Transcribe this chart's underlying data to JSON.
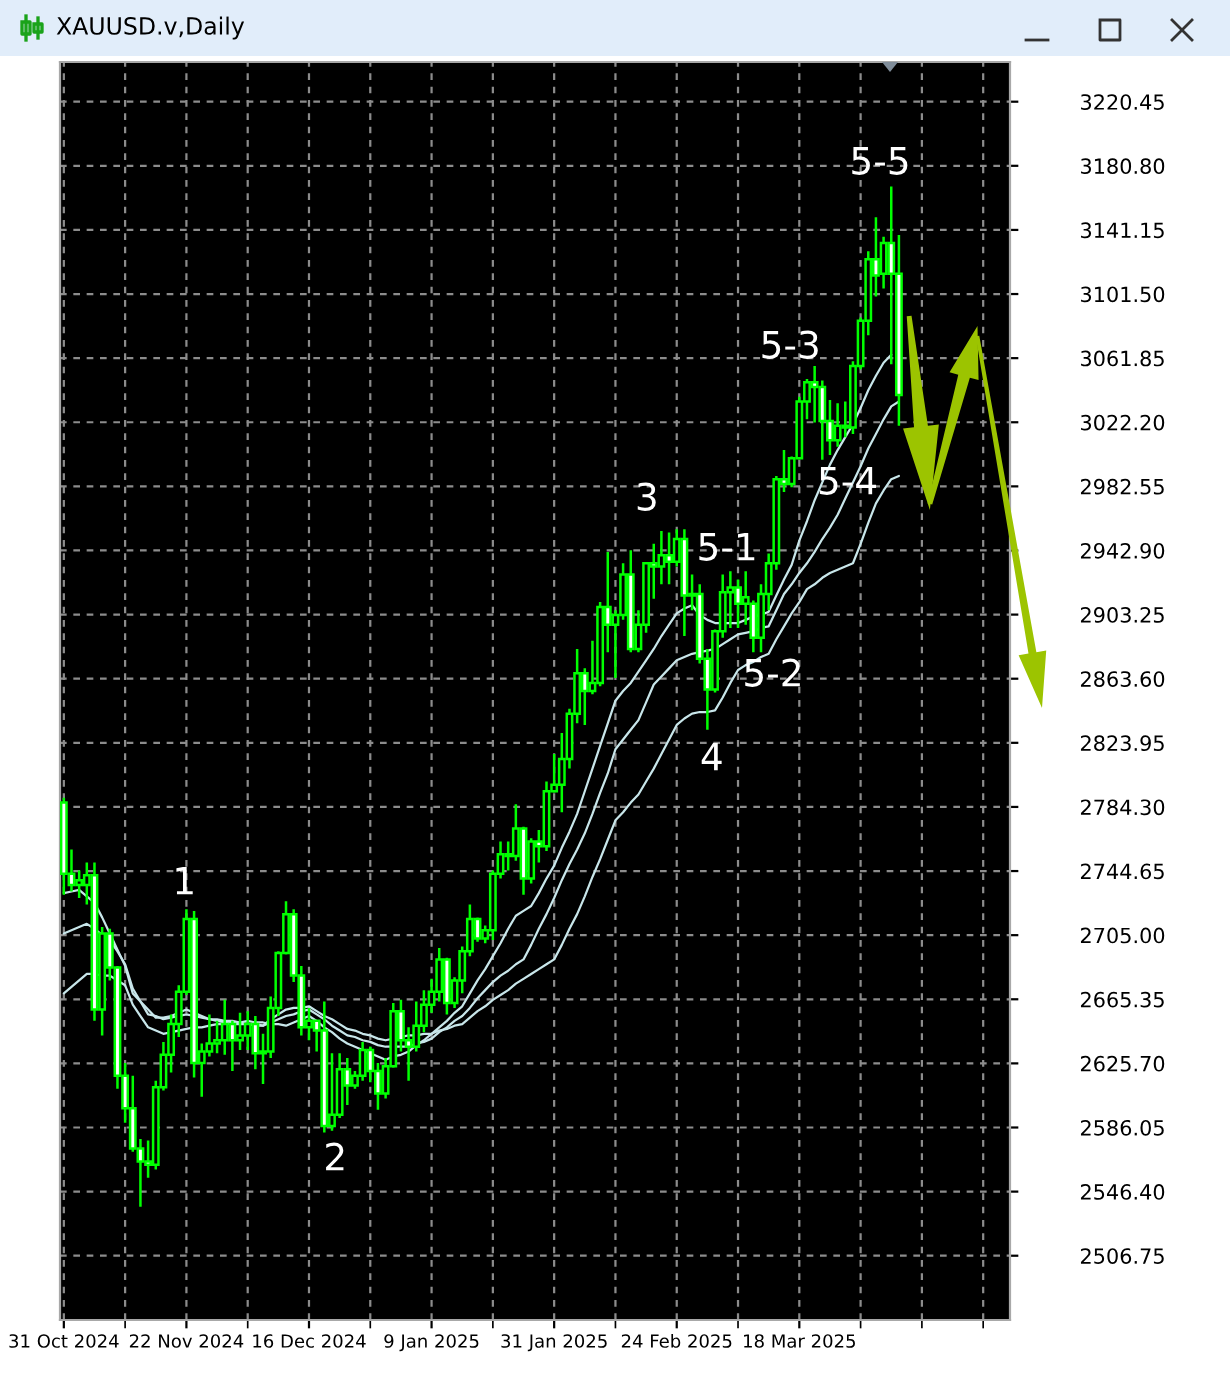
{
  "chart_data": {
    "type": "candlestick",
    "title": "XAUUSD.v,Daily",
    "color": "#00ff00",
    "categories": [
      "31 Oct 2024",
      null,
      null,
      null,
      null,
      null,
      null,
      null,
      null,
      null,
      null,
      null,
      null,
      null,
      null,
      null,
      "22 Nov 2024",
      null,
      null,
      null,
      null,
      null,
      null,
      null,
      null,
      null,
      null,
      null,
      null,
      null,
      null,
      null,
      "16 Dec 2024",
      null,
      null,
      null,
      null,
      null,
      null,
      null,
      null,
      null,
      null,
      null,
      null,
      null,
      null,
      null,
      "9 Jan 2025",
      null,
      null,
      null,
      null,
      null,
      null,
      null,
      null,
      null,
      null,
      null,
      null,
      null,
      null,
      null,
      "31 Jan 2025",
      null,
      null,
      null,
      null,
      null,
      null,
      null,
      null,
      null,
      null,
      null,
      null,
      null,
      null,
      null,
      "24 Feb 2025",
      null,
      null,
      null,
      null,
      null,
      null,
      null,
      null,
      null,
      null,
      null,
      null,
      null,
      null,
      null,
      "18 Mar 2025",
      null,
      null,
      null,
      null,
      null,
      null,
      null,
      null,
      null,
      null,
      null,
      null,
      null,
      null,
      null,
      null,
      null,
      null,
      null,
      null,
      null,
      null,
      null,
      null,
      null,
      null,
      null
    ],
    "ohlc": [
      [
        2787,
        2790,
        2730,
        2743
      ],
      [
        2743,
        2758,
        2732,
        2736
      ],
      [
        2736,
        2745,
        2728,
        2739
      ],
      [
        2736,
        2750,
        2724,
        2742
      ],
      [
        2742,
        2750,
        2652,
        2659
      ],
      [
        2659,
        2710,
        2643,
        2706
      ],
      [
        2706,
        2709,
        2677,
        2685
      ],
      [
        2685,
        2686,
        2610,
        2618
      ],
      [
        2618,
        2626,
        2589,
        2598
      ],
      [
        2598,
        2618,
        2571,
        2573
      ],
      [
        2573,
        2579,
        2537,
        2565
      ],
      [
        2565,
        2578,
        2555,
        2563
      ],
      [
        2563,
        2615,
        2560,
        2611
      ],
      [
        2611,
        2639,
        2609,
        2631
      ],
      [
        2631,
        2656,
        2620,
        2650
      ],
      [
        2650,
        2674,
        2642,
        2670
      ],
      [
        2670,
        2721,
        2668,
        2715
      ],
      [
        2715,
        2720,
        2617,
        2626
      ],
      [
        2626,
        2638,
        2605,
        2633
      ],
      [
        2633,
        2656,
        2630,
        2638
      ],
      [
        2638,
        2652,
        2632,
        2640
      ],
      [
        2640,
        2665,
        2631,
        2650
      ],
      [
        2650,
        2652,
        2621,
        2640
      ],
      [
        2640,
        2657,
        2634,
        2643
      ],
      [
        2643,
        2658,
        2634,
        2650
      ],
      [
        2650,
        2655,
        2622,
        2632
      ],
      [
        2632,
        2644,
        2613,
        2633
      ],
      [
        2633,
        2667,
        2629,
        2660
      ],
      [
        2660,
        2695,
        2655,
        2694
      ],
      [
        2694,
        2726,
        2693,
        2718
      ],
      [
        2718,
        2721,
        2676,
        2680
      ],
      [
        2680,
        2686,
        2643,
        2648
      ],
      [
        2648,
        2660,
        2640,
        2652
      ],
      [
        2652,
        2652,
        2633,
        2646
      ],
      [
        2646,
        2664,
        2583,
        2587
      ],
      [
        2587,
        2632,
        2584,
        2594
      ],
      [
        2594,
        2632,
        2592,
        2622
      ],
      [
        2622,
        2629,
        2600,
        2612
      ],
      [
        2612,
        2621,
        2610,
        2618
      ],
      [
        2618,
        2639,
        2615,
        2634
      ],
      [
        2634,
        2636,
        2614,
        2621
      ],
      [
        2621,
        2626,
        2597,
        2607
      ],
      [
        2607,
        2629,
        2604,
        2624
      ],
      [
        2624,
        2663,
        2623,
        2658
      ],
      [
        2658,
        2665,
        2633,
        2640
      ],
      [
        2640,
        2648,
        2615,
        2636
      ],
      [
        2636,
        2664,
        2633,
        2649
      ],
      [
        2649,
        2671,
        2645,
        2662
      ],
      [
        2662,
        2678,
        2657,
        2670
      ],
      [
        2670,
        2697,
        2664,
        2690
      ],
      [
        2690,
        2691,
        2656,
        2663
      ],
      [
        2663,
        2679,
        2660,
        2677
      ],
      [
        2677,
        2698,
        2669,
        2695
      ],
      [
        2695,
        2724,
        2692,
        2715
      ],
      [
        2715,
        2716,
        2701,
        2703
      ],
      [
        2703,
        2711,
        2700,
        2708
      ],
      [
        2708,
        2745,
        2702,
        2743
      ],
      [
        2743,
        2763,
        2740,
        2755
      ],
      [
        2755,
        2763,
        2745,
        2754
      ],
      [
        2754,
        2786,
        2751,
        2771
      ],
      [
        2771,
        2772,
        2730,
        2740
      ],
      [
        2740,
        2765,
        2737,
        2763
      ],
      [
        2763,
        2770,
        2750,
        2760
      ],
      [
        2760,
        2800,
        2757,
        2794
      ],
      [
        2794,
        2817,
        2793,
        2798
      ],
      [
        2798,
        2830,
        2781,
        2814
      ],
      [
        2814,
        2845,
        2808,
        2842
      ],
      [
        2842,
        2882,
        2836,
        2867
      ],
      [
        2867,
        2870,
        2835,
        2856
      ],
      [
        2856,
        2887,
        2854,
        2861
      ],
      [
        2861,
        2911,
        2859,
        2908
      ],
      [
        2908,
        2942,
        2880,
        2897
      ],
      [
        2897,
        2906,
        2864,
        2903
      ],
      [
        2903,
        2935,
        2900,
        2928
      ],
      [
        2928,
        2943,
        2880,
        2882
      ],
      [
        2882,
        2906,
        2880,
        2897
      ],
      [
        2897,
        2935,
        2892,
        2935
      ],
      [
        2935,
        2947,
        2913,
        2933
      ],
      [
        2933,
        2955,
        2922,
        2940
      ],
      [
        2940,
        2954,
        2922,
        2936
      ],
      [
        2936,
        2956,
        2933,
        2950
      ],
      [
        2950,
        2956,
        2890,
        2915
      ],
      [
        2915,
        2928,
        2906,
        2916
      ],
      [
        2916,
        2922,
        2873,
        2876
      ],
      [
        2876,
        2882,
        2832,
        2857
      ],
      [
        2857,
        2894,
        2855,
        2893
      ],
      [
        2893,
        2928,
        2889,
        2917
      ],
      [
        2917,
        2930,
        2895,
        2920
      ],
      [
        2920,
        2925,
        2895,
        2910
      ],
      [
        2910,
        2930,
        2897,
        2914
      ],
      [
        2910,
        2912,
        2880,
        2889
      ],
      [
        2889,
        2922,
        2880,
        2916
      ],
      [
        2916,
        2941,
        2906,
        2935
      ],
      [
        2935,
        2989,
        2931,
        2987
      ],
      [
        2987,
        3005,
        2979,
        2984
      ],
      [
        2984,
        3001,
        2982,
        3000
      ],
      [
        3000,
        3038,
        2999,
        3035
      ],
      [
        3035,
        3049,
        3024,
        3047
      ],
      [
        3047,
        3057,
        3022,
        3044
      ],
      [
        3044,
        3048,
        2999,
        3023
      ],
      [
        3023,
        3036,
        3002,
        3011
      ],
      [
        3011,
        3034,
        3007,
        3020
      ],
      [
        3020,
        3035,
        3013,
        3019
      ],
      [
        3019,
        3060,
        3015,
        3057
      ],
      [
        3057,
        3087,
        3055,
        3085
      ],
      [
        3085,
        3128,
        3076,
        3123
      ],
      [
        3123,
        3149,
        3100,
        3113
      ],
      [
        3114,
        3137,
        3105,
        3133
      ],
      [
        3133,
        3168,
        3058,
        3114
      ],
      [
        3114,
        3138,
        3020,
        3039
      ],
      null,
      null,
      null,
      null,
      null,
      null,
      null,
      null,
      null,
      null,
      null,
      null,
      null,
      null
    ],
    "series": [
      {
        "type": "line",
        "color": "#c8e6ea",
        "values": [
          2731,
          2732,
          2733,
          2729,
          2725,
          2716,
          2706,
          2696,
          2686,
          2669,
          2664,
          2659,
          2654,
          2654,
          2655,
          2657,
          2659,
          2657,
          2655,
          2653,
          2652,
          2651,
          2650,
          2650,
          2650,
          2649,
          2649,
          2653,
          2656,
          2659,
          2660,
          2660,
          2661,
          2658,
          2655,
          2653,
          2650,
          2647,
          2646,
          2644,
          2643,
          2641,
          2640,
          2641,
          2642,
          2643,
          2643,
          2644,
          2644,
          2648,
          2652,
          2657,
          2661,
          2669,
          2677,
          2684,
          2692,
          2700,
          2709,
          2717,
          2720,
          2723,
          2731,
          2740,
          2748,
          2759,
          2769,
          2780,
          2794,
          2808,
          2822,
          2836,
          2850,
          2856,
          2861,
          2868,
          2875,
          2882,
          2890,
          2897,
          2904,
          2907,
          2909,
          2903,
          2900,
          2898,
          2898,
          2898,
          2898,
          2900,
          2902,
          2903,
          2905,
          2915,
          2925,
          2934,
          2949,
          2961,
          2974,
          2985,
          2996,
          3005,
          3013,
          3021,
          3031,
          3042,
          3051,
          3059,
          3064,
          null,
          null,
          null,
          null,
          null,
          null,
          null,
          null,
          null,
          null,
          null,
          null,
          null,
          null,
          null
        ]
      },
      {
        "type": "line",
        "color": "#c8e6ea",
        "values": [
          2706,
          2708,
          2710,
          2712,
          2709,
          2705,
          2702,
          2695,
          2687,
          2672,
          2664,
          2656,
          2655,
          2653,
          2654,
          2655,
          2656,
          2655,
          2654,
          2653,
          2653,
          2652,
          2652,
          2651,
          2650,
          2650,
          2649,
          2651,
          2653,
          2655,
          2656,
          2658,
          2659,
          2656,
          2653,
          2649,
          2646,
          2643,
          2642,
          2640,
          2639,
          2637,
          2636,
          2636,
          2636,
          2636,
          2638,
          2639,
          2641,
          2645,
          2648,
          2652,
          2655,
          2660,
          2666,
          2671,
          2676,
          2680,
          2683,
          2687,
          2690,
          2699,
          2709,
          2718,
          2728,
          2739,
          2749,
          2758,
          2768,
          2780,
          2793,
          2805,
          2820,
          2826,
          2832,
          2838,
          2849,
          2860,
          2865,
          2870,
          2875,
          2877,
          2879,
          2880,
          2881,
          2882,
          2885,
          2888,
          2891,
          2892,
          2893,
          2895,
          2896,
          2906,
          2916,
          2922,
          2929,
          2935,
          2942,
          2950,
          2957,
          2965,
          2975,
          2985,
          2995,
          3006,
          3015,
          3024,
          3032,
          3035,
          null,
          null,
          null,
          null,
          null,
          null,
          null,
          null,
          null,
          null,
          null,
          null,
          null,
          null
        ]
      },
      {
        "type": "line",
        "color": "#c8e6ea",
        "values": [
          2669,
          2673,
          2677,
          2681,
          2681,
          2680,
          2680,
          2677,
          2674,
          2662,
          2655,
          2648,
          2646,
          2644,
          2645,
          2646,
          2647,
          2648,
          2648,
          2649,
          2650,
          2650,
          2651,
          2651,
          2652,
          2651,
          2651,
          2650,
          2650,
          2649,
          2651,
          2653,
          2655,
          2652,
          2648,
          2645,
          2641,
          2638,
          2636,
          2634,
          2632,
          2630,
          2628,
          2630,
          2631,
          2633,
          2637,
          2640,
          2644,
          2646,
          2647,
          2649,
          2650,
          2654,
          2658,
          2661,
          2665,
          2668,
          2671,
          2675,
          2678,
          2681,
          2684,
          2687,
          2690,
          2699,
          2709,
          2718,
          2729,
          2741,
          2752,
          2764,
          2776,
          2781,
          2787,
          2792,
          2800,
          2808,
          2817,
          2826,
          2835,
          2839,
          2842,
          2843,
          2843,
          2844,
          2852,
          2861,
          2869,
          2872,
          2874,
          2877,
          2879,
          2888,
          2896,
          2904,
          2911,
          2919,
          2922,
          2926,
          2929,
          2931,
          2933,
          2935,
          2947,
          2960,
          2972,
          2980,
          2987,
          2989,
          null,
          null,
          null,
          null,
          null,
          null,
          null,
          null,
          null,
          null,
          null,
          null,
          null,
          null
        ]
      }
    ],
    "ylim": [
      2467,
      3245
    ],
    "yticks": [
      2506.75,
      {
        "value": 2546.4,
        "label": "2546.40"
      },
      2586.05,
      {
        "value": 2625.7,
        "label": "2625.70"
      },
      2665.35,
      {
        "value": 2705,
        "label": "2705.00"
      },
      2744.65,
      {
        "value": 2784.3,
        "label": "2784.30"
      },
      2823.95,
      {
        "value": 2863.6,
        "label": "2863.60"
      },
      2903.25,
      {
        "value": 2942.9,
        "label": "2942.90"
      },
      2982.55,
      {
        "value": 3022.2,
        "label": "3022.20"
      },
      3061.85,
      {
        "value": 3101.5,
        "label": "3101.50"
      },
      3141.15,
      {
        "value": 3180.8,
        "label": "3180.80"
      },
      3220.45
    ],
    "grid": true,
    "annotations": [
      "1",
      "2",
      "3",
      "4",
      "5-1",
      "5-2",
      "5-3",
      "5-4",
      "5-5"
    ]
  }
}
